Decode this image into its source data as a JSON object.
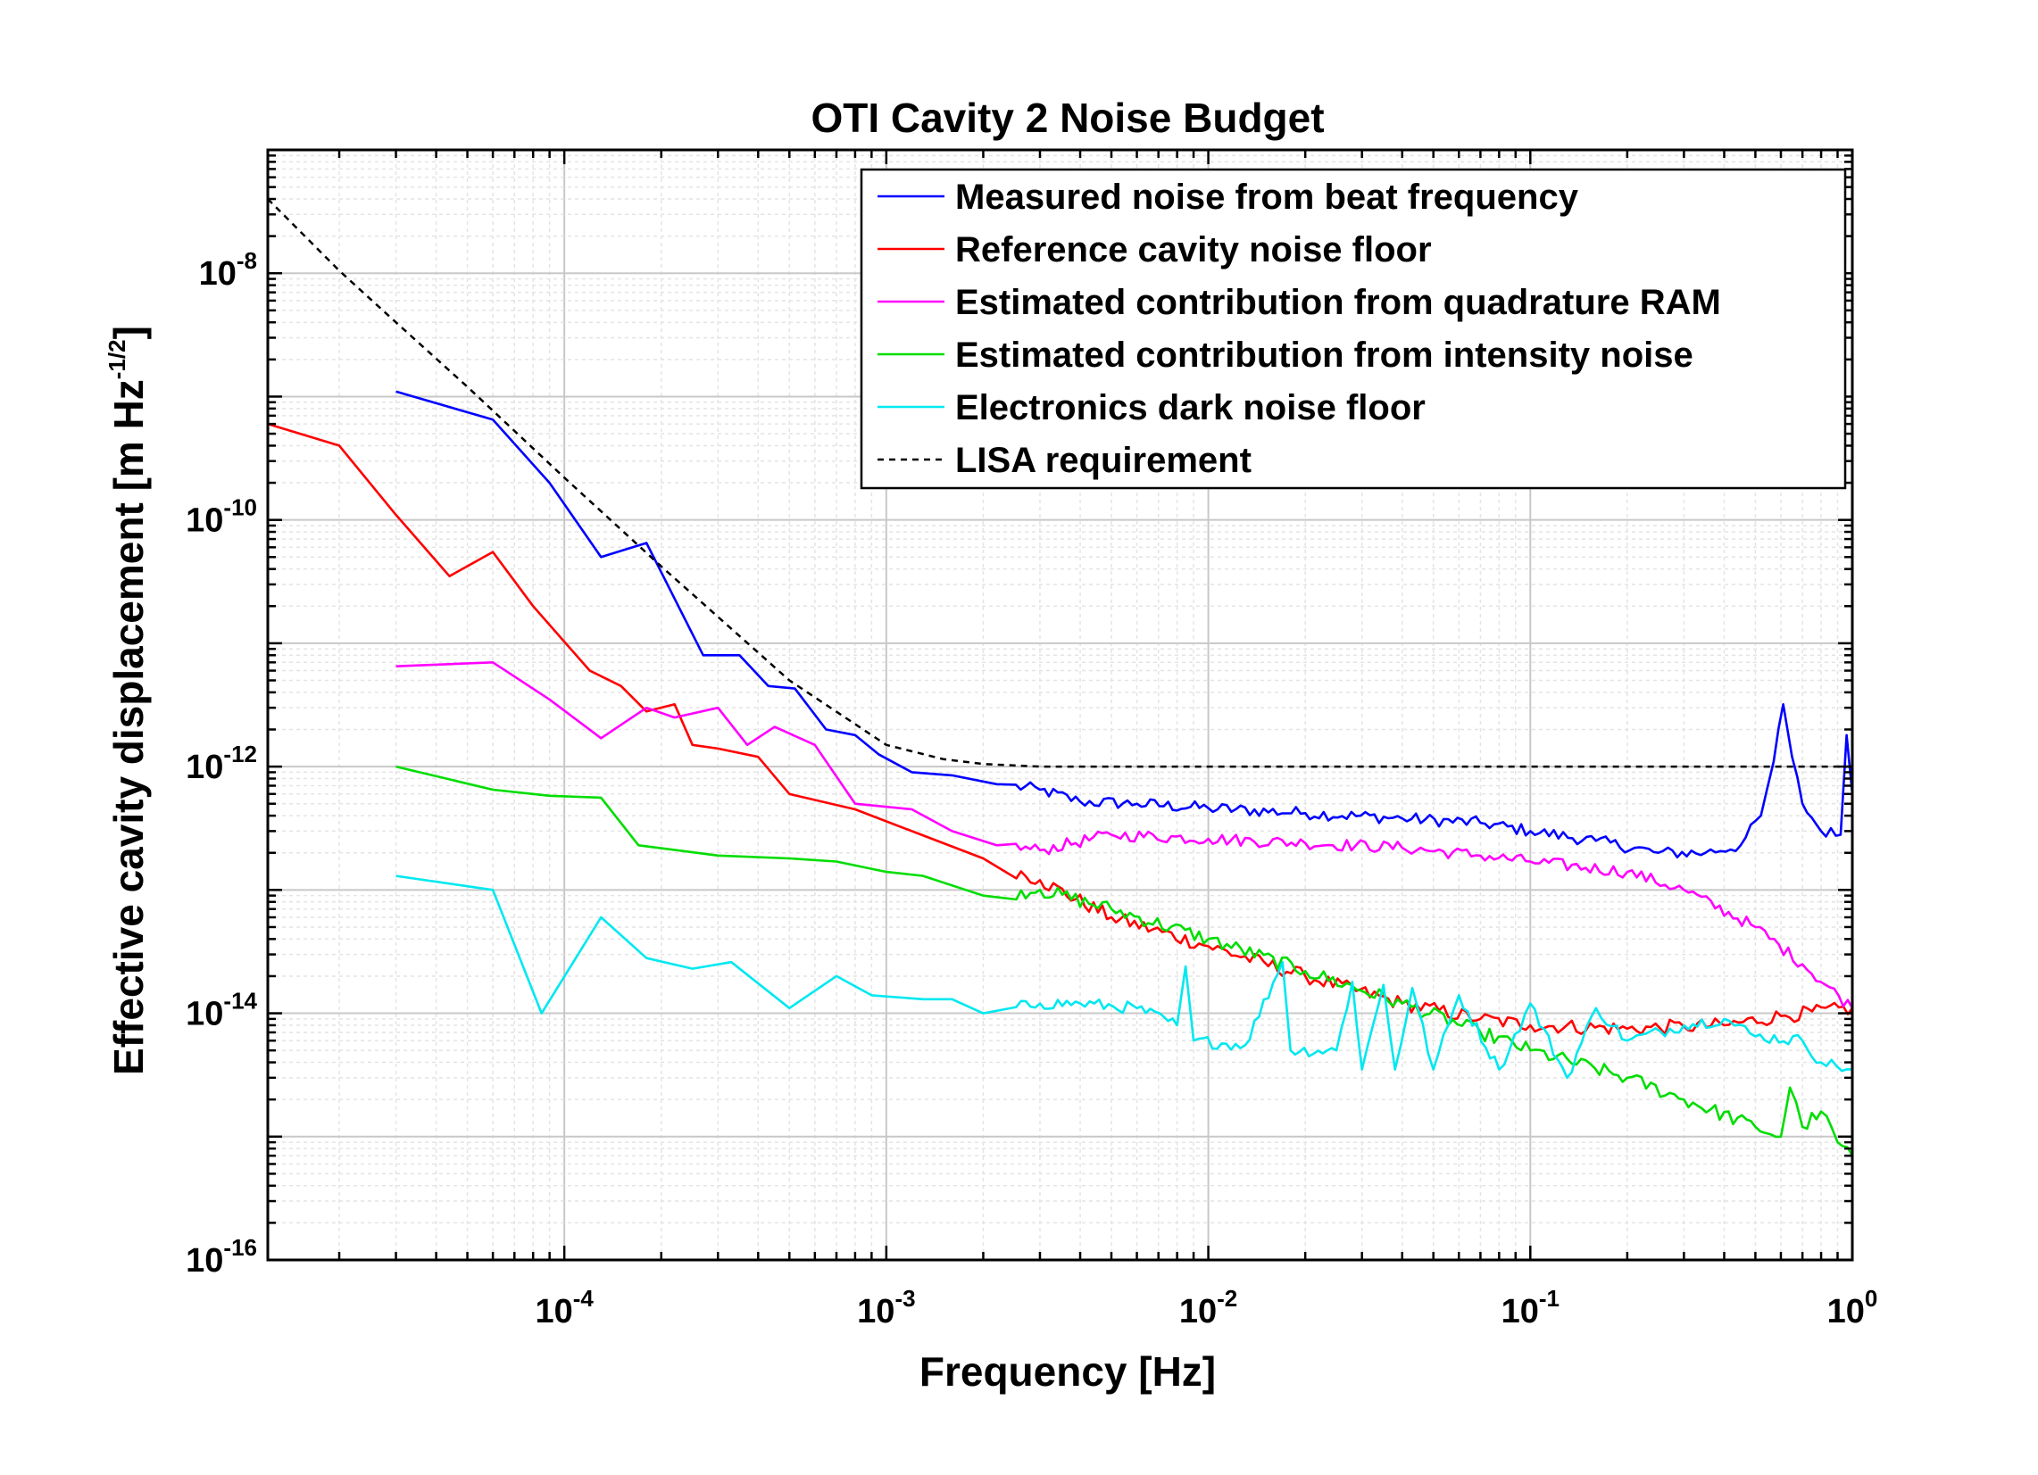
{
  "chart_data": {
    "type": "line",
    "title": "OTI Cavity 2 Noise Budget",
    "xlabel": "Frequency  [Hz]",
    "ylabel": {
      "main": "Effective cavity displacement  [m Hz",
      "exponent": "-1/2",
      "close": "]"
    },
    "xscale": "log",
    "yscale": "log",
    "xlim": [
      1.2e-05,
      1.0
    ],
    "ylim": [
      1e-16,
      1e-07
    ],
    "grid": true,
    "legend_position": "top-right",
    "x_ticks": [
      {
        "value": 0.0001,
        "base": "10",
        "exp": "-4"
      },
      {
        "value": 0.001,
        "base": "10",
        "exp": "-3"
      },
      {
        "value": 0.01,
        "base": "10",
        "exp": "-2"
      },
      {
        "value": 0.1,
        "base": "10",
        "exp": "-1"
      },
      {
        "value": 1,
        "base": "10",
        "exp": "0"
      }
    ],
    "y_ticks": [
      {
        "value": 1e-16,
        "base": "10",
        "exp": "-16"
      },
      {
        "value": 1e-14,
        "base": "10",
        "exp": "-14"
      },
      {
        "value": 1e-12,
        "base": "10",
        "exp": "-12"
      },
      {
        "value": 1e-10,
        "base": "10",
        "exp": "-10"
      },
      {
        "value": 1e-08,
        "base": "10",
        "exp": "-8"
      }
    ],
    "series": [
      {
        "name": "Measured noise from beat frequency",
        "color": "#0000ff",
        "style": "solid",
        "points": [
          [
            3e-05,
            1.1e-09
          ],
          [
            6e-05,
            6.5e-10
          ],
          [
            9e-05,
            2e-10
          ],
          [
            0.00013,
            5e-11
          ],
          [
            0.00018,
            6.5e-11
          ],
          [
            0.00027,
            8e-12
          ],
          [
            0.00035,
            8e-12
          ],
          [
            0.00043,
            4.5e-12
          ],
          [
            0.00052,
            4.3e-12
          ],
          [
            0.00065,
            2e-12
          ],
          [
            0.0008,
            1.8e-12
          ],
          [
            0.00095,
            1.25e-12
          ],
          [
            0.0012,
            9e-13
          ],
          [
            0.0016,
            8.5e-13
          ],
          [
            0.0022,
            7.2e-13
          ],
          [
            0.003,
            6.5e-13
          ],
          [
            0.004,
            5.2e-13
          ],
          [
            0.006,
            5e-13
          ],
          [
            0.01,
            4.6e-13
          ],
          [
            0.02,
            4.2e-13
          ],
          [
            0.04,
            3.8e-13
          ],
          [
            0.07,
            3.5e-13
          ],
          [
            0.1,
            3e-13
          ],
          [
            0.16,
            2.5e-13
          ],
          [
            0.25,
            2e-13
          ],
          [
            0.35,
            2e-13
          ],
          [
            0.45,
            2.3e-13
          ],
          [
            0.52,
            4e-13
          ],
          [
            0.57,
            1.1e-12
          ],
          [
            0.61,
            3.2e-12
          ],
          [
            0.65,
            1.2e-12
          ],
          [
            0.7,
            5e-13
          ],
          [
            0.8,
            3e-13
          ],
          [
            0.92,
            2.8e-13
          ],
          [
            0.96,
            1.8e-12
          ],
          [
            1.0,
            6e-13
          ]
        ],
        "jitter": 0.05
      },
      {
        "name": "Reference cavity noise floor",
        "color": "#ff0000",
        "style": "solid",
        "points": [
          [
            1.2e-05,
            6e-10
          ],
          [
            2e-05,
            4e-10
          ],
          [
            3e-05,
            1.1e-10
          ],
          [
            4.4e-05,
            3.5e-11
          ],
          [
            6e-05,
            5.5e-11
          ],
          [
            8e-05,
            2e-11
          ],
          [
            0.00012,
            6e-12
          ],
          [
            0.00015,
            4.5e-12
          ],
          [
            0.00018,
            2.8e-12
          ],
          [
            0.00022,
            3.2e-12
          ],
          [
            0.00025,
            1.5e-12
          ],
          [
            0.0003,
            1.4e-12
          ],
          [
            0.0004,
            1.2e-12
          ],
          [
            0.0005,
            6e-13
          ],
          [
            0.0008,
            4.5e-13
          ],
          [
            0.0012,
            3e-13
          ],
          [
            0.002,
            1.8e-13
          ],
          [
            0.003,
            1.2e-13
          ],
          [
            0.005,
            6e-14
          ],
          [
            0.01,
            3.5e-14
          ],
          [
            0.02,
            2e-14
          ],
          [
            0.04,
            1.2e-14
          ],
          [
            0.07,
            9e-15
          ],
          [
            0.1,
            8e-15
          ],
          [
            0.2,
            7.5e-15
          ],
          [
            0.3,
            7.8e-15
          ],
          [
            0.4,
            8e-15
          ],
          [
            0.6,
            9.5e-15
          ],
          [
            1.0,
            1.1e-14
          ]
        ],
        "jitter": 0.06
      },
      {
        "name": "Estimated contribution from quadrature RAM",
        "color": "#ff00ff",
        "style": "solid",
        "points": [
          [
            3e-05,
            6.5e-12
          ],
          [
            6e-05,
            7e-12
          ],
          [
            9e-05,
            3.5e-12
          ],
          [
            0.00013,
            1.7e-12
          ],
          [
            0.00018,
            3e-12
          ],
          [
            0.00022,
            2.5e-12
          ],
          [
            0.0003,
            3e-12
          ],
          [
            0.00037,
            1.5e-12
          ],
          [
            0.00045,
            2.1e-12
          ],
          [
            0.0006,
            1.5e-12
          ],
          [
            0.0008,
            5e-13
          ],
          [
            0.0012,
            4.5e-13
          ],
          [
            0.0016,
            3e-13
          ],
          [
            0.0022,
            2.3e-13
          ],
          [
            0.003,
            2.1e-13
          ],
          [
            0.005,
            2.8e-13
          ],
          [
            0.01,
            2.6e-13
          ],
          [
            0.02,
            2.4e-13
          ],
          [
            0.04,
            2.2e-13
          ],
          [
            0.07,
            1.9e-13
          ],
          [
            0.1,
            1.7e-13
          ],
          [
            0.2,
            1.4e-13
          ],
          [
            0.3,
            1e-13
          ],
          [
            0.5,
            5e-14
          ],
          [
            0.7,
            2.5e-14
          ],
          [
            1.0,
            1.1e-14
          ]
        ],
        "jitter": 0.05
      },
      {
        "name": "Estimated contribution from intensity noise",
        "color": "#00dd00",
        "style": "solid",
        "points": [
          [
            3e-05,
            1e-12
          ],
          [
            6e-05,
            6.5e-13
          ],
          [
            9e-05,
            5.8e-13
          ],
          [
            0.00013,
            5.6e-13
          ],
          [
            0.00017,
            2.3e-13
          ],
          [
            0.0003,
            1.9e-13
          ],
          [
            0.0005,
            1.8e-13
          ],
          [
            0.0007,
            1.7e-13
          ],
          [
            0.001,
            1.4e-13
          ],
          [
            0.0013,
            1.3e-13
          ],
          [
            0.002,
            9e-14
          ],
          [
            0.003,
            1e-13
          ],
          [
            0.005,
            7e-14
          ],
          [
            0.01,
            4e-14
          ],
          [
            0.02,
            2.2e-14
          ],
          [
            0.04,
            1.2e-14
          ],
          [
            0.07,
            7e-15
          ],
          [
            0.1,
            5e-15
          ],
          [
            0.2,
            3e-15
          ],
          [
            0.3,
            2e-15
          ],
          [
            0.5,
            1.2e-15
          ],
          [
            0.6,
            1e-15
          ],
          [
            0.64,
            2.5e-15
          ],
          [
            0.7,
            1.2e-15
          ],
          [
            0.8,
            1.6e-15
          ],
          [
            0.9,
            9e-16
          ],
          [
            1.0,
            7e-16
          ]
        ],
        "jitter": 0.06
      },
      {
        "name": "Electronics dark noise floor",
        "color": "#00e8f0",
        "style": "solid",
        "points": [
          [
            3e-05,
            1.3e-13
          ],
          [
            6e-05,
            1e-13
          ],
          [
            8.5e-05,
            1e-14
          ],
          [
            0.00013,
            6e-14
          ],
          [
            0.00018,
            2.8e-14
          ],
          [
            0.00025,
            2.3e-14
          ],
          [
            0.00033,
            2.6e-14
          ],
          [
            0.0005,
            1.1e-14
          ],
          [
            0.0007,
            2e-14
          ],
          [
            0.0009,
            1.4e-14
          ],
          [
            0.0013,
            1.3e-14
          ],
          [
            0.0016,
            1.3e-14
          ],
          [
            0.002,
            1e-14
          ],
          [
            0.003,
            1.2e-14
          ],
          [
            0.004,
            1.2e-14
          ],
          [
            0.006,
            1.1e-14
          ],
          [
            0.008,
            8e-15
          ],
          [
            0.0085,
            2.4e-14
          ],
          [
            0.009,
            6e-15
          ],
          [
            0.013,
            5.5e-15
          ],
          [
            0.017,
            2.6e-14
          ],
          [
            0.018,
            5e-15
          ],
          [
            0.025,
            5e-15
          ],
          [
            0.028,
            1.8e-14
          ],
          [
            0.03,
            3.5e-15
          ],
          [
            0.035,
            1.7e-14
          ],
          [
            0.038,
            3.5e-15
          ],
          [
            0.043,
            1.6e-14
          ],
          [
            0.05,
            3.5e-15
          ],
          [
            0.06,
            1.4e-14
          ],
          [
            0.08,
            3.5e-15
          ],
          [
            0.1,
            1.2e-14
          ],
          [
            0.13,
            3e-15
          ],
          [
            0.16,
            1.1e-14
          ],
          [
            0.2,
            6e-15
          ],
          [
            0.3,
            8e-15
          ],
          [
            0.4,
            9e-15
          ],
          [
            0.5,
            6.5e-15
          ],
          [
            0.7,
            6e-15
          ],
          [
            0.8,
            4e-15
          ],
          [
            1.0,
            3.5e-15
          ]
        ],
        "jitter": 0.05
      },
      {
        "name": "LISA requirement",
        "color": "#000000",
        "style": "dashed",
        "points": [
          [
            1.2e-05,
            4e-08
          ],
          [
            2e-05,
            1.05e-08
          ],
          [
            3e-05,
            4e-09
          ],
          [
            5e-05,
            1.2e-09
          ],
          [
            0.0001,
            2.2e-10
          ],
          [
            0.0002,
            4.2e-11
          ],
          [
            0.0005,
            5e-12
          ],
          [
            0.001,
            1.5e-12
          ],
          [
            0.0015,
            1.15e-12
          ],
          [
            0.002,
            1.05e-12
          ],
          [
            0.003,
            1e-12
          ],
          [
            0.01,
            1e-12
          ],
          [
            0.1,
            1e-12
          ],
          [
            1.0,
            1e-12
          ]
        ],
        "jitter": 0
      }
    ]
  }
}
